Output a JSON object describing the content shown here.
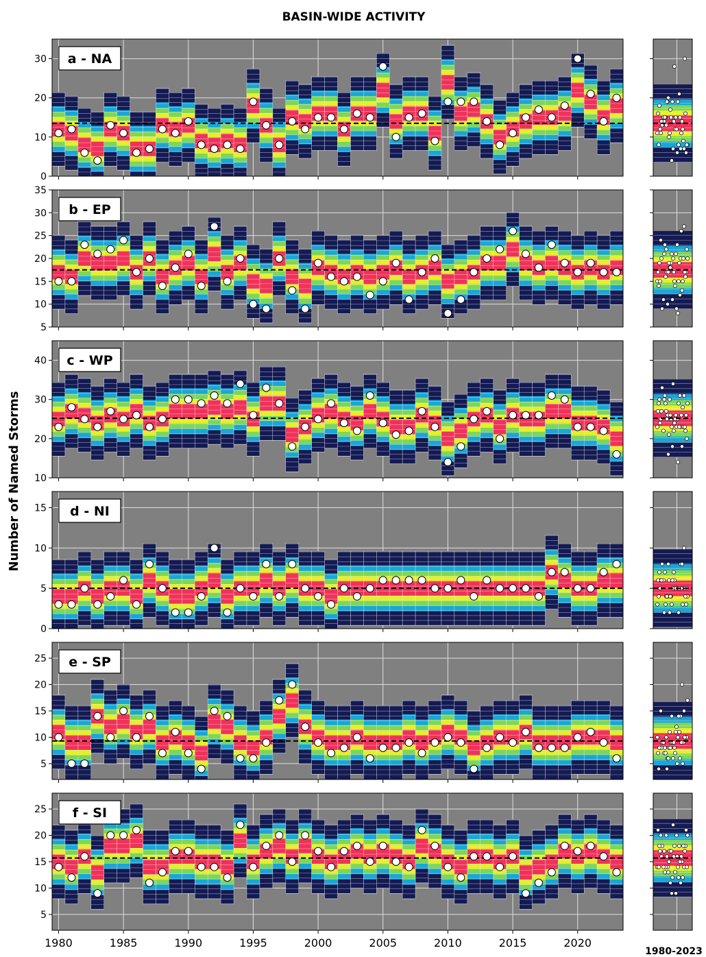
{
  "figure": {
    "title": "BASIN-WIDE ACTIVITY",
    "ylabel": "Number of Named Storms",
    "inset_label": "1980-2023"
  },
  "colors": {
    "background": "#808080",
    "outer": "#141a52",
    "band_cyan": "#1aa6d6",
    "band_green": "#7dd65a",
    "band_yellow": "#e6ef2a",
    "median_red": "#f0325a",
    "marker_fill": "#ffffff",
    "mean_line": "#000000"
  },
  "chart_data": {
    "type": "scatter",
    "x_ticks": [
      1980,
      1985,
      1990,
      1995,
      2000,
      2005,
      2010,
      2015,
      2020
    ],
    "xlim": [
      1979.5,
      2023.5
    ],
    "years": [
      1980,
      1981,
      1982,
      1983,
      1984,
      1985,
      1986,
      1987,
      1988,
      1989,
      1990,
      1991,
      1992,
      1993,
      1994,
      1995,
      1996,
      1997,
      1998,
      1999,
      2000,
      2001,
      2002,
      2003,
      2004,
      2005,
      2006,
      2007,
      2008,
      2009,
      2010,
      2011,
      2012,
      2013,
      2014,
      2015,
      2016,
      2017,
      2018,
      2019,
      2020,
      2021,
      2022,
      2023
    ],
    "panels": [
      {
        "id": "na",
        "label": "a - NA",
        "ylim": [
          0,
          35
        ],
        "yticks": [
          0,
          10,
          20,
          30
        ],
        "mean": 13.5,
        "observed": [
          11,
          12,
          6,
          4,
          13,
          11,
          6,
          7,
          12,
          11,
          14,
          8,
          7,
          8,
          7,
          19,
          13,
          8,
          14,
          12,
          15,
          15,
          12,
          16,
          15,
          28,
          10,
          15,
          16,
          9,
          19,
          19,
          19,
          14,
          8,
          11,
          15,
          17,
          15,
          18,
          30,
          21,
          14,
          20
        ],
        "forecast_center": [
          12,
          11,
          8,
          7,
          12,
          11,
          7,
          7,
          13,
          12,
          13,
          9,
          8,
          9,
          8,
          18,
          13,
          8,
          15,
          14,
          16,
          16,
          12,
          16,
          16,
          22,
          14,
          16,
          16,
          11,
          24,
          16,
          17,
          14,
          10,
          12,
          14,
          15,
          15,
          16,
          22,
          19,
          15,
          18
        ]
      },
      {
        "id": "ep",
        "label": "b - EP",
        "ylim": [
          5,
          35
        ],
        "yticks": [
          5,
          10,
          15,
          20,
          25,
          30,
          35
        ],
        "mean": 17.5,
        "observed": [
          15,
          15,
          23,
          21,
          22,
          24,
          17,
          20,
          14,
          18,
          21,
          14,
          27,
          15,
          20,
          10,
          9,
          20,
          13,
          9,
          19,
          16,
          15,
          16,
          12,
          15,
          19,
          11,
          17,
          20,
          8,
          11,
          17,
          20,
          22,
          26,
          21,
          18,
          23,
          19,
          17,
          19,
          17,
          17
        ],
        "forecast_center": [
          17,
          16,
          20,
          19,
          19,
          20,
          17,
          20,
          16,
          18,
          19,
          16,
          21,
          17,
          19,
          15,
          14,
          20,
          16,
          14,
          18,
          17,
          16,
          17,
          16,
          17,
          18,
          16,
          17,
          18,
          15,
          16,
          17,
          19,
          19,
          22,
          19,
          18,
          19,
          18,
          17,
          18,
          17,
          18
        ]
      },
      {
        "id": "wp",
        "label": "c - WP",
        "ylim": [
          10,
          45
        ],
        "yticks": [
          10,
          20,
          30,
          40
        ],
        "mean": 25.2,
        "observed": [
          23,
          28,
          25,
          23,
          27,
          25,
          26,
          23,
          25,
          30,
          30,
          29,
          31,
          29,
          34,
          26,
          33,
          29,
          18,
          23,
          25,
          29,
          24,
          22,
          31,
          24,
          21,
          22,
          27,
          23,
          14,
          18,
          25,
          27,
          20,
          26,
          26,
          26,
          31,
          30,
          23,
          23,
          22,
          16
        ],
        "forecast_center": [
          25,
          27,
          26,
          24,
          26,
          25,
          27,
          24,
          25,
          27,
          27,
          27,
          28,
          27,
          28,
          25,
          29,
          29,
          21,
          23,
          26,
          27,
          25,
          24,
          27,
          25,
          23,
          23,
          26,
          24,
          20,
          22,
          25,
          26,
          23,
          26,
          25,
          25,
          27,
          27,
          24,
          24,
          23,
          20
        ]
      },
      {
        "id": "ni",
        "label": "d - NI",
        "ylim": [
          0,
          17
        ],
        "yticks": [
          0,
          5,
          10,
          15
        ],
        "mean": 5.0,
        "observed": [
          3,
          3,
          5,
          3,
          4,
          6,
          3,
          8,
          5,
          2,
          2,
          4,
          10,
          2,
          5,
          4,
          8,
          4,
          8,
          5,
          4,
          3,
          5,
          4,
          5,
          6,
          6,
          6,
          6,
          5,
          5,
          6,
          4,
          6,
          5,
          5,
          5,
          4,
          7,
          7,
          5,
          5,
          7,
          8
        ],
        "forecast_center": [
          4,
          4,
          5,
          4,
          5,
          5,
          4,
          6,
          5,
          4,
          4,
          5,
          6,
          4,
          5,
          5,
          6,
          5,
          6,
          5,
          5,
          4,
          5,
          5,
          5,
          5,
          5,
          5,
          5,
          5,
          5,
          5,
          5,
          5,
          5,
          5,
          5,
          5,
          7,
          6,
          5,
          5,
          6,
          6
        ]
      },
      {
        "id": "sp",
        "label": "e - SP",
        "ylim": [
          2,
          28
        ],
        "yticks": [
          5,
          10,
          15,
          20,
          25
        ],
        "mean": 9.3,
        "observed": [
          10,
          5,
          5,
          14,
          10,
          15,
          10,
          14,
          7,
          11,
          7,
          4,
          15,
          14,
          6,
          6,
          9,
          17,
          20,
          12,
          9,
          7,
          8,
          10,
          6,
          8,
          8,
          9,
          7,
          9,
          10,
          9,
          4,
          8,
          10,
          9,
          11,
          8,
          8,
          8,
          10,
          11,
          9,
          6
        ],
        "forecast_center": [
          11,
          9,
          9,
          14,
          12,
          13,
          11,
          12,
          9,
          10,
          9,
          7,
          13,
          12,
          9,
          8,
          10,
          14,
          17,
          12,
          10,
          9,
          9,
          10,
          9,
          9,
          9,
          10,
          9,
          10,
          11,
          10,
          8,
          9,
          10,
          10,
          11,
          9,
          9,
          9,
          10,
          10,
          10,
          9
        ]
      },
      {
        "id": "si",
        "label": "f - SI",
        "ylim": [
          2,
          28
        ],
        "yticks": [
          5,
          10,
          15,
          20,
          25
        ],
        "mean": 15.7,
        "observed": [
          14,
          12,
          16,
          9,
          20,
          20,
          21,
          11,
          13,
          17,
          17,
          14,
          14,
          12,
          22,
          14,
          18,
          20,
          15,
          20,
          17,
          14,
          17,
          18,
          15,
          18,
          15,
          14,
          21,
          18,
          14,
          12,
          16,
          16,
          14,
          16,
          9,
          11,
          13,
          18,
          17,
          18,
          16,
          13
        ],
        "forecast_center": [
          15,
          14,
          16,
          13,
          18,
          18,
          19,
          14,
          14,
          16,
          16,
          15,
          15,
          14,
          19,
          15,
          17,
          18,
          16,
          18,
          16,
          15,
          16,
          17,
          16,
          17,
          16,
          15,
          18,
          17,
          15,
          14,
          16,
          16,
          15,
          16,
          13,
          14,
          15,
          17,
          16,
          17,
          16,
          15
        ]
      }
    ]
  }
}
